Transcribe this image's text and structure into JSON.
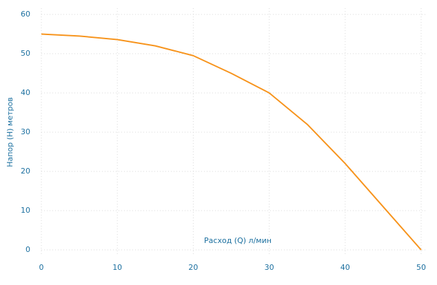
{
  "chart_data": {
    "type": "line",
    "x_label": "Расход (Q) л/мин",
    "y_label": "Напор (H) метров",
    "x": [
      0,
      5,
      10,
      15,
      20,
      25,
      30,
      35,
      40,
      45,
      50
    ],
    "series": [
      {
        "color": "#f7941d",
        "values": [
          55,
          54.5,
          53.6,
          52,
          49.5,
          45,
          40,
          32,
          22,
          11,
          0
        ]
      }
    ],
    "xlim": [
      0,
      50
    ],
    "ylim": [
      0,
      60
    ],
    "xticks": [
      0,
      10,
      20,
      30,
      40,
      50
    ],
    "yticks": [
      0,
      10,
      20,
      30,
      40,
      50,
      60
    ],
    "grid": true
  }
}
